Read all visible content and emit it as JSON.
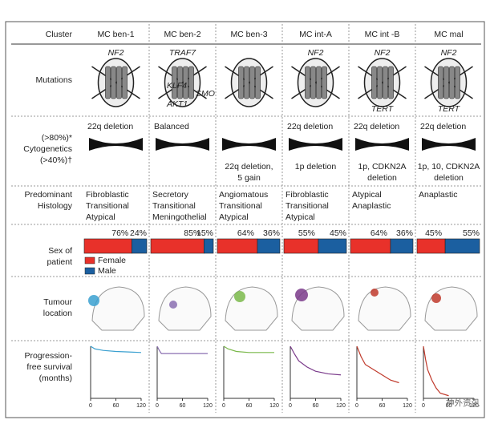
{
  "row_labels": {
    "cluster": [
      "Cluster"
    ],
    "mutations": [
      "Mutations"
    ],
    "cytogenetics": [
      "(>80%)*",
      "Cytogenetics",
      "(>40%)†"
    ],
    "histology": [
      "Predominant",
      "Histology"
    ],
    "sex": [
      "Sex of",
      "patient"
    ],
    "location": [
      "Tumour",
      "location"
    ],
    "survival": [
      "Progression-",
      "free survival",
      "(months)"
    ]
  },
  "legend": [
    {
      "name": "Female",
      "color": "#e8312a"
    },
    {
      "name": "Male",
      "color": "#1b5fa0"
    }
  ],
  "survival_xlim": [
    0,
    120
  ],
  "survival_ylim": [
    0,
    1
  ],
  "survival_xticks": [
    0,
    60,
    120
  ],
  "clusters": [
    {
      "name": "MC ben-1",
      "color": "#3aa0d0",
      "mutations_top": "NF2",
      "cyto_top": "22q deletion",
      "histology": [
        "Fibroblastic",
        "Transitional",
        "Atypical"
      ],
      "female": 76,
      "female_label": "76%",
      "male": 24,
      "male_label": "24%",
      "survival": {
        "x": [
          0,
          10,
          30,
          60,
          90,
          120
        ],
        "y": [
          1,
          0.95,
          0.92,
          0.9,
          0.89,
          0.88
        ]
      }
    },
    {
      "name": "MC ben-2",
      "color": "#8a6fb0",
      "mutations_top": "TRAF7",
      "mutations_side": [
        "KLF4",
        "SMO",
        "AKT1"
      ],
      "cyto_top": "Balanced",
      "histology": [
        "Secretory",
        "Transitional",
        "Meningothelial"
      ],
      "female": 85,
      "female_label": "85%",
      "male": 15,
      "male_label": "15%",
      "survival": {
        "x": [
          0,
          5,
          10,
          120
        ],
        "y": [
          1,
          0.92,
          0.86,
          0.86
        ]
      }
    },
    {
      "name": "MC ben-3",
      "color": "#7ab84a",
      "cyto_bottom": [
        "22q deletion,",
        "5 gain"
      ],
      "histology": [
        "Angiomatous",
        "Transitional",
        "Atypical"
      ],
      "female": 64,
      "female_label": "64%",
      "male": 36,
      "male_label": "36%",
      "survival": {
        "x": [
          0,
          10,
          30,
          60,
          120
        ],
        "y": [
          1,
          0.95,
          0.9,
          0.88,
          0.88
        ]
      }
    },
    {
      "name": "MC int-A",
      "color": "#7a3a8a",
      "mutations_top": "NF2",
      "cyto_top": "22q deletion",
      "cyto_bottom": [
        "1p deletion"
      ],
      "histology": [
        "Fibroblastic",
        "Transitional",
        "Atypical"
      ],
      "female": 55,
      "female_label": "55%",
      "male": 45,
      "male_label": "45%",
      "survival": {
        "x": [
          0,
          10,
          20,
          40,
          60,
          90,
          120
        ],
        "y": [
          1,
          0.85,
          0.72,
          0.6,
          0.52,
          0.47,
          0.45
        ]
      }
    },
    {
      "name": "MC int -B",
      "color": "#c0392b",
      "mutations_top": "NF2",
      "mutations_bottom": "TERT",
      "cyto_top": "22q deletion",
      "cyto_bottom": [
        "1p, CDKN2A",
        "deletion"
      ],
      "histology": [
        "Atypical",
        "Anaplastic"
      ],
      "female": 64,
      "female_label": "64%",
      "male": 36,
      "male_label": "36%",
      "survival": {
        "x": [
          0,
          10,
          20,
          40,
          60,
          80,
          100
        ],
        "y": [
          1,
          0.8,
          0.65,
          0.55,
          0.45,
          0.35,
          0.3
        ]
      }
    },
    {
      "name": "MC mal",
      "color": "#c0392b",
      "mutations_top": "NF2",
      "mutations_bottom": "TERT",
      "cyto_top": "22q deletion",
      "cyto_bottom": [
        "1p, 10, CDKN2A",
        "deletion"
      ],
      "histology": [
        "Anaplastic"
      ],
      "female": 45,
      "female_label": "45%",
      "male": 55,
      "male_label": "55%",
      "survival": {
        "x": [
          0,
          5,
          10,
          20,
          30,
          40,
          60
        ],
        "y": [
          1,
          0.75,
          0.55,
          0.35,
          0.2,
          0.1,
          0.05
        ]
      }
    }
  ],
  "watermark": "神外资讯"
}
